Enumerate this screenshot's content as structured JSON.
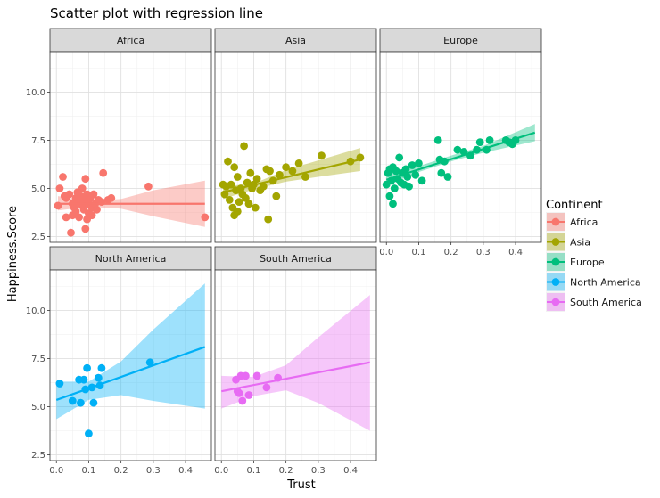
{
  "chart_data": {
    "type": "scatter",
    "title": "Scatter plot with regression line",
    "xlabel": "Trust",
    "ylabel": "Happiness.Score",
    "xlim": [
      -0.02,
      0.48
    ],
    "ylim": [
      2.2,
      12.1
    ],
    "x_ticks": [
      0.0,
      0.1,
      0.2,
      0.3,
      0.4
    ],
    "x_tick_labels": [
      "0.0",
      "0.1",
      "0.2",
      "0.3",
      "0.4"
    ],
    "y_ticks": [
      2.5,
      5.0,
      7.5,
      10.0
    ],
    "y_tick_labels": [
      "2.5",
      "5.0",
      "7.5",
      "10.0"
    ],
    "grid": true,
    "legend": {
      "title": "Continent",
      "position": "right"
    },
    "panels": [
      {
        "name": "Africa",
        "color": "#F8766D",
        "points": [
          [
            0.005,
            4.1
          ],
          [
            0.01,
            5.0
          ],
          [
            0.02,
            5.6
          ],
          [
            0.025,
            4.6
          ],
          [
            0.03,
            3.5
          ],
          [
            0.04,
            4.7
          ],
          [
            0.045,
            2.7
          ],
          [
            0.05,
            4.2
          ],
          [
            0.05,
            3.6
          ],
          [
            0.055,
            4.0
          ],
          [
            0.06,
            4.5
          ],
          [
            0.06,
            3.8
          ],
          [
            0.065,
            4.8
          ],
          [
            0.07,
            4.3
          ],
          [
            0.07,
            3.5
          ],
          [
            0.075,
            4.6
          ],
          [
            0.08,
            5.0
          ],
          [
            0.08,
            4.1
          ],
          [
            0.085,
            3.9
          ],
          [
            0.09,
            5.5
          ],
          [
            0.09,
            4.4
          ],
          [
            0.09,
            2.9
          ],
          [
            0.095,
            4.7
          ],
          [
            0.1,
            4.2
          ],
          [
            0.1,
            3.7
          ],
          [
            0.105,
            4.5
          ],
          [
            0.11,
            4.0
          ],
          [
            0.11,
            3.6
          ],
          [
            0.115,
            4.7
          ],
          [
            0.12,
            4.2
          ],
          [
            0.125,
            3.9
          ],
          [
            0.13,
            4.4
          ],
          [
            0.14,
            4.3
          ],
          [
            0.145,
            5.8
          ],
          [
            0.16,
            4.4
          ],
          [
            0.17,
            4.5
          ],
          [
            0.285,
            5.1
          ],
          [
            0.46,
            3.5
          ],
          [
            0.03,
            4.5
          ],
          [
            0.075,
            4.2
          ],
          [
            0.095,
            3.4
          ]
        ],
        "fit": [
          [
            0.005,
            4.2
          ],
          [
            0.46,
            4.2
          ]
        ],
        "band": [
          [
            0.005,
            4.6,
            3.85
          ],
          [
            0.1,
            4.35,
            4.05
          ],
          [
            0.2,
            4.45,
            3.95
          ],
          [
            0.3,
            4.9,
            3.55
          ],
          [
            0.46,
            5.4,
            3.0
          ]
        ]
      },
      {
        "name": "Asia",
        "color": "#A3A500",
        "points": [
          [
            0.005,
            5.2
          ],
          [
            0.01,
            4.7
          ],
          [
            0.015,
            5.1
          ],
          [
            0.02,
            6.4
          ],
          [
            0.025,
            4.4
          ],
          [
            0.03,
            5.2
          ],
          [
            0.035,
            4.0
          ],
          [
            0.04,
            6.1
          ],
          [
            0.04,
            3.6
          ],
          [
            0.045,
            4.9
          ],
          [
            0.05,
            5.6
          ],
          [
            0.05,
            3.8
          ],
          [
            0.055,
            4.3
          ],
          [
            0.06,
            5.0
          ],
          [
            0.065,
            4.7
          ],
          [
            0.07,
            7.2
          ],
          [
            0.075,
            4.5
          ],
          [
            0.08,
            5.3
          ],
          [
            0.085,
            4.2
          ],
          [
            0.09,
            5.8
          ],
          [
            0.095,
            5.0
          ],
          [
            0.1,
            5.2
          ],
          [
            0.105,
            4.0
          ],
          [
            0.11,
            5.5
          ],
          [
            0.12,
            4.9
          ],
          [
            0.13,
            5.1
          ],
          [
            0.14,
            6.0
          ],
          [
            0.145,
            3.4
          ],
          [
            0.15,
            5.9
          ],
          [
            0.16,
            5.4
          ],
          [
            0.17,
            4.6
          ],
          [
            0.18,
            5.7
          ],
          [
            0.2,
            6.1
          ],
          [
            0.22,
            5.9
          ],
          [
            0.24,
            6.3
          ],
          [
            0.26,
            5.6
          ],
          [
            0.31,
            6.7
          ],
          [
            0.4,
            6.4
          ],
          [
            0.43,
            6.6
          ]
        ],
        "fit": [
          [
            0.005,
            4.8
          ],
          [
            0.43,
            6.5
          ]
        ],
        "band": [
          [
            0.005,
            5.1,
            4.45
          ],
          [
            0.1,
            5.25,
            4.95
          ],
          [
            0.2,
            5.95,
            5.35
          ],
          [
            0.3,
            6.45,
            5.6
          ],
          [
            0.43,
            7.1,
            5.9
          ]
        ]
      },
      {
        "name": "Europe",
        "color": "#00BF7D",
        "points": [
          [
            0.0,
            5.2
          ],
          [
            0.005,
            5.8
          ],
          [
            0.01,
            6.0
          ],
          [
            0.01,
            4.6
          ],
          [
            0.015,
            5.4
          ],
          [
            0.02,
            6.1
          ],
          [
            0.02,
            4.2
          ],
          [
            0.025,
            5.0
          ],
          [
            0.03,
            5.9
          ],
          [
            0.035,
            5.5
          ],
          [
            0.04,
            6.6
          ],
          [
            0.045,
            5.3
          ],
          [
            0.05,
            5.8
          ],
          [
            0.055,
            5.2
          ],
          [
            0.06,
            6.0
          ],
          [
            0.065,
            5.6
          ],
          [
            0.07,
            5.1
          ],
          [
            0.08,
            6.2
          ],
          [
            0.09,
            5.7
          ],
          [
            0.1,
            6.3
          ],
          [
            0.11,
            5.4
          ],
          [
            0.16,
            7.5
          ],
          [
            0.165,
            6.5
          ],
          [
            0.17,
            5.8
          ],
          [
            0.18,
            6.4
          ],
          [
            0.19,
            5.6
          ],
          [
            0.22,
            7.0
          ],
          [
            0.24,
            6.9
          ],
          [
            0.26,
            6.7
          ],
          [
            0.28,
            7.0
          ],
          [
            0.29,
            7.4
          ],
          [
            0.31,
            7.0
          ],
          [
            0.32,
            7.5
          ],
          [
            0.37,
            7.5
          ],
          [
            0.38,
            7.4
          ],
          [
            0.39,
            7.3
          ],
          [
            0.4,
            7.5
          ]
        ],
        "fit": [
          [
            0.0,
            5.45
          ],
          [
            0.46,
            7.9
          ]
        ],
        "band": [
          [
            0.0,
            5.8,
            5.15
          ],
          [
            0.1,
            6.15,
            5.85
          ],
          [
            0.2,
            6.7,
            6.4
          ],
          [
            0.3,
            7.2,
            6.85
          ],
          [
            0.46,
            8.35,
            7.45
          ]
        ]
      },
      {
        "name": "North America",
        "color": "#00B0F6",
        "points": [
          [
            0.01,
            6.2
          ],
          [
            0.05,
            5.3
          ],
          [
            0.07,
            6.4
          ],
          [
            0.075,
            5.2
          ],
          [
            0.085,
            6.4
          ],
          [
            0.09,
            5.9
          ],
          [
            0.095,
            7.0
          ],
          [
            0.1,
            3.6
          ],
          [
            0.11,
            6.0
          ],
          [
            0.115,
            5.2
          ],
          [
            0.13,
            6.5
          ],
          [
            0.135,
            6.1
          ],
          [
            0.14,
            7.0
          ],
          [
            0.29,
            7.3
          ]
        ],
        "fit": [
          [
            0.0,
            5.35
          ],
          [
            0.46,
            8.1
          ]
        ],
        "band": [
          [
            0.0,
            6.3,
            4.35
          ],
          [
            0.1,
            6.3,
            5.35
          ],
          [
            0.2,
            7.35,
            5.6
          ],
          [
            0.3,
            9.0,
            5.3
          ],
          [
            0.46,
            11.4,
            4.9
          ]
        ]
      },
      {
        "name": "South America",
        "color": "#E76BF3",
        "points": [
          [
            0.045,
            6.4
          ],
          [
            0.05,
            5.8
          ],
          [
            0.055,
            5.7
          ],
          [
            0.06,
            6.6
          ],
          [
            0.065,
            5.3
          ],
          [
            0.075,
            6.6
          ],
          [
            0.085,
            5.6
          ],
          [
            0.11,
            6.6
          ],
          [
            0.14,
            6.0
          ],
          [
            0.175,
            6.5
          ]
        ],
        "fit": [
          [
            0.0,
            5.8
          ],
          [
            0.46,
            7.3
          ]
        ],
        "band": [
          [
            0.0,
            6.6,
            4.9
          ],
          [
            0.1,
            6.55,
            5.55
          ],
          [
            0.2,
            7.15,
            5.85
          ],
          [
            0.3,
            8.6,
            5.2
          ],
          [
            0.46,
            10.8,
            3.75
          ]
        ]
      }
    ]
  },
  "legend_items": [
    {
      "label": "Africa",
      "color": "#F8766D"
    },
    {
      "label": "Asia",
      "color": "#A3A500"
    },
    {
      "label": "Europe",
      "color": "#00BF7D"
    },
    {
      "label": "North America",
      "color": "#00B0F6"
    },
    {
      "label": "South America",
      "color": "#E76BF3"
    }
  ]
}
